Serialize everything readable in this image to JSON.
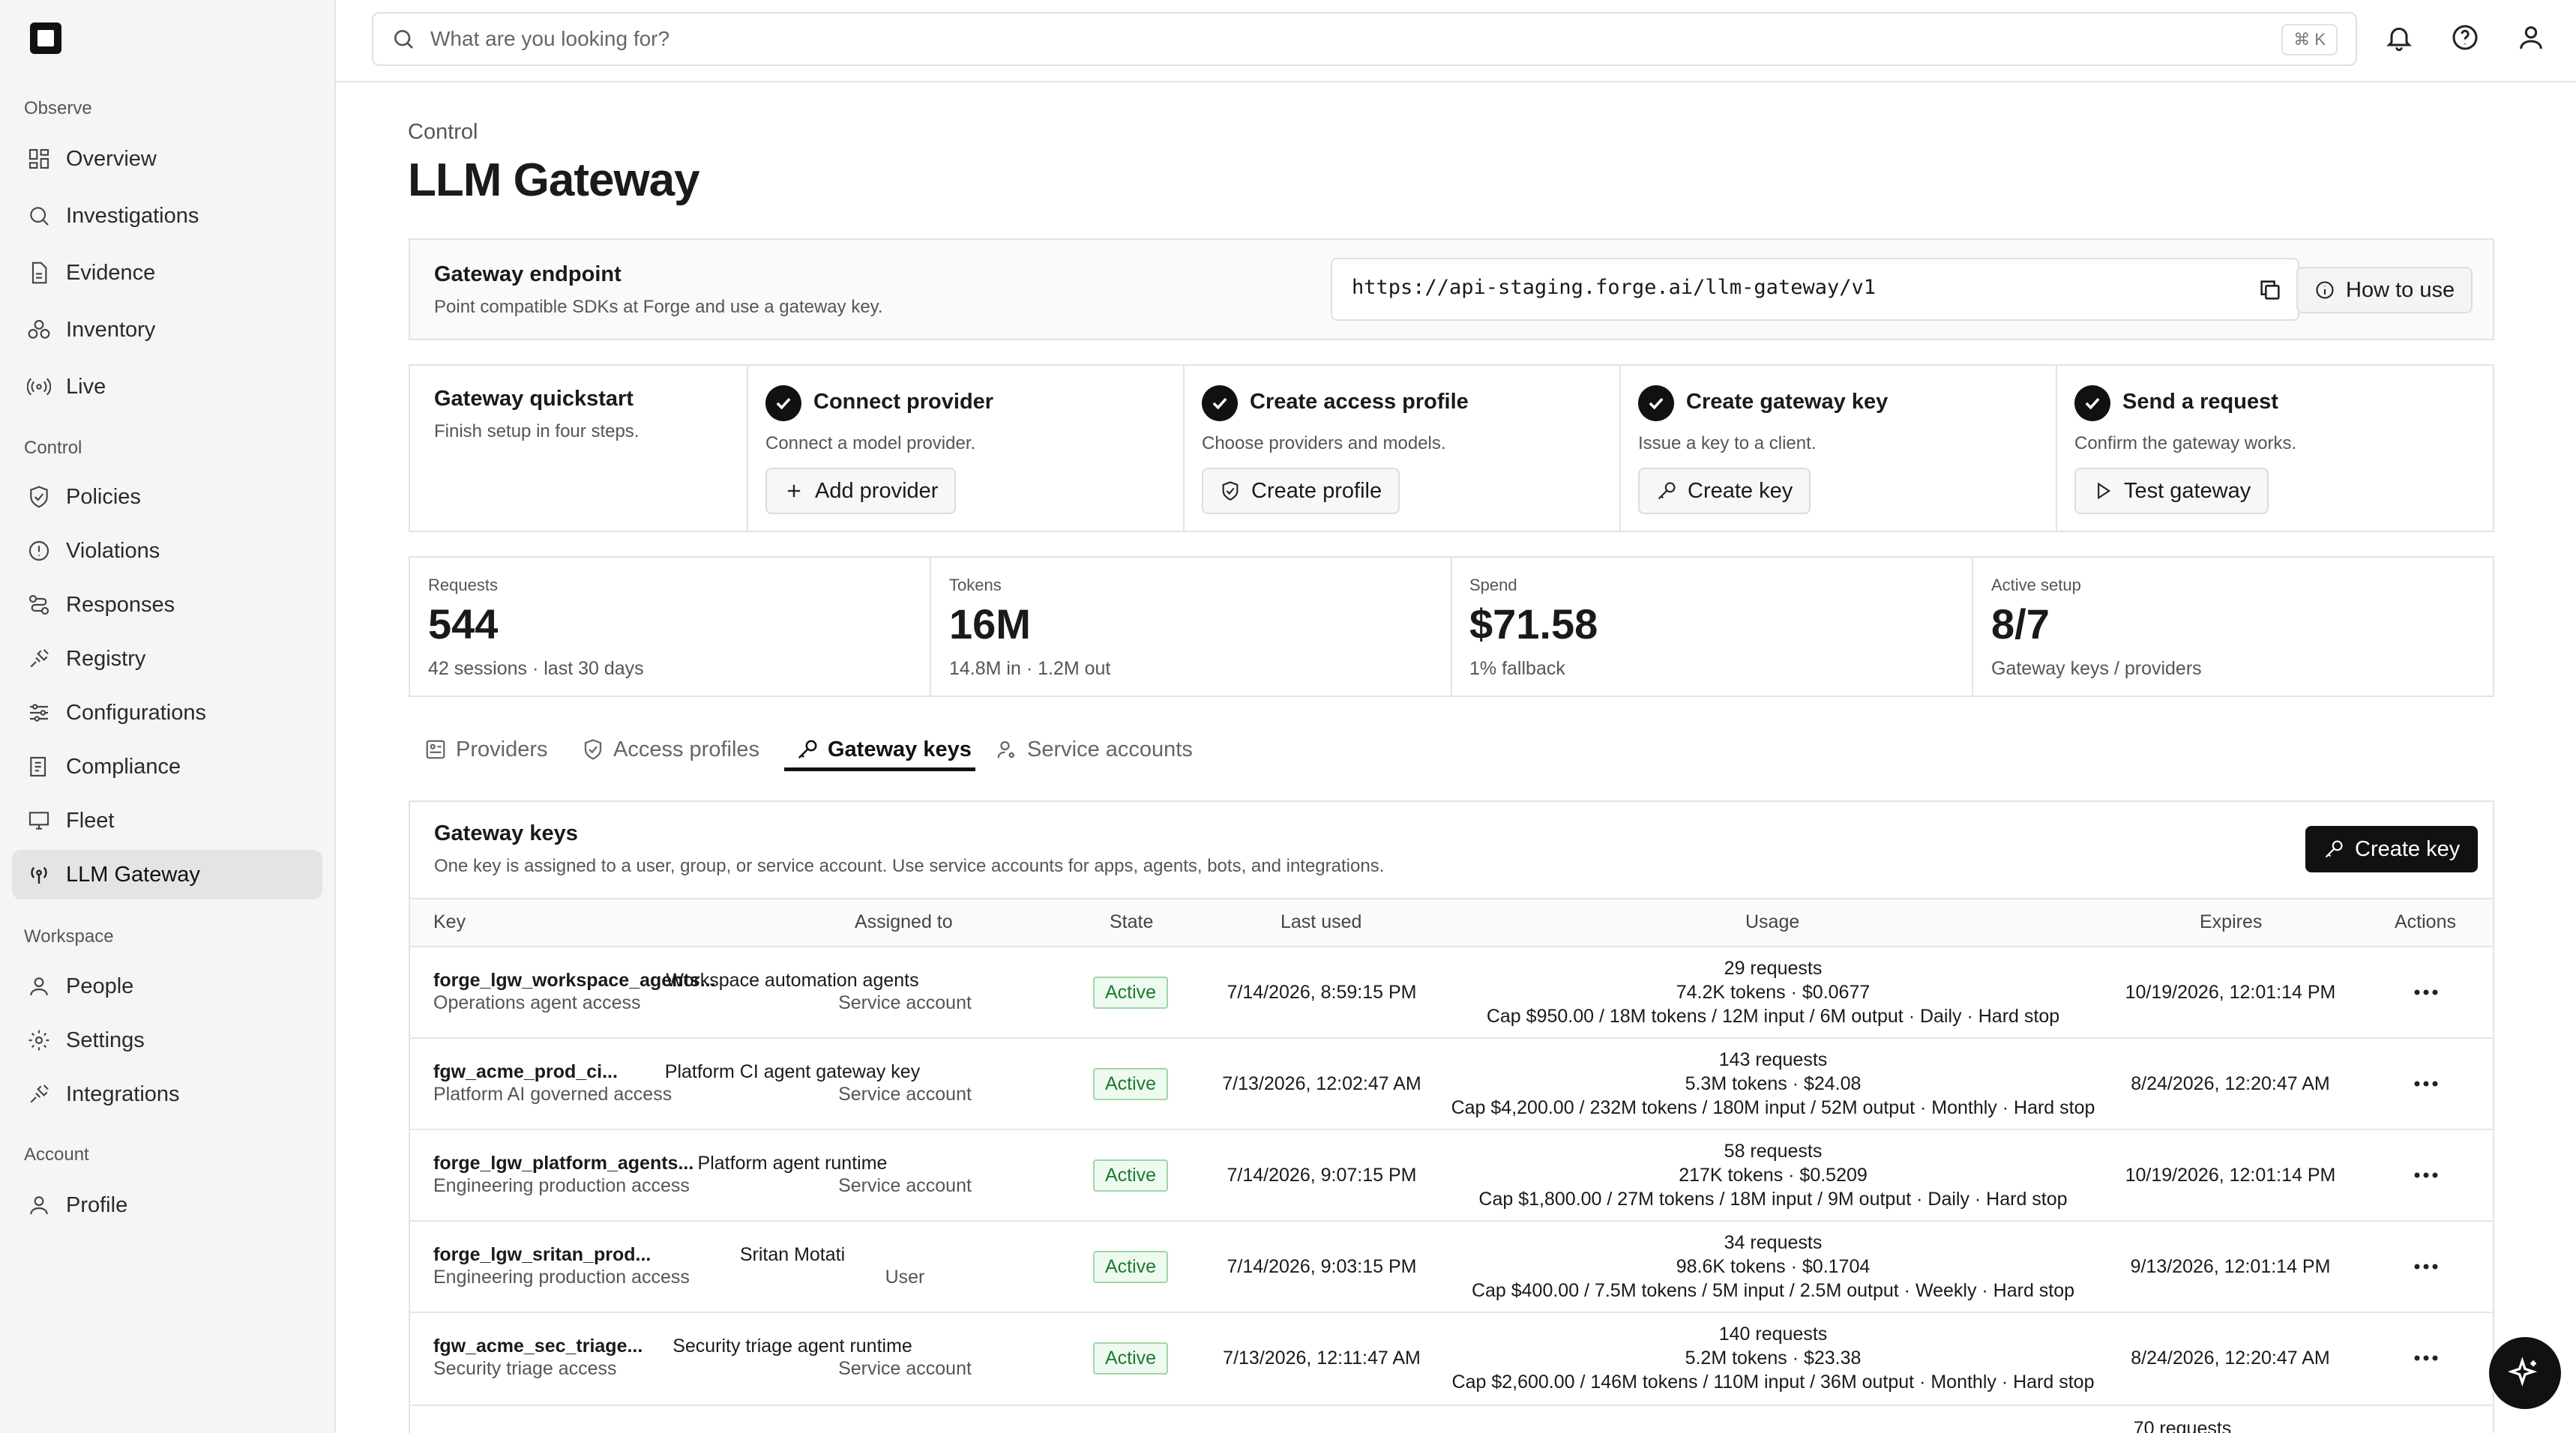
{
  "search": {
    "placeholder": "What are you looking for?",
    "shortcut": "⌘ K"
  },
  "sidebar": {
    "sections": [
      "Observe",
      "Control",
      "Workspace",
      "Account"
    ],
    "items": [
      "Overview",
      "Investigations",
      "Evidence",
      "Inventory",
      "Live",
      "Policies",
      "Violations",
      "Responses",
      "Registry",
      "Configurations",
      "Compliance",
      "Fleet",
      "LLM Gateway",
      "People",
      "Settings",
      "Integrations",
      "Profile"
    ]
  },
  "page": {
    "breadcrumb": "Control",
    "title": "LLM Gateway"
  },
  "endpoint": {
    "title": "Gateway endpoint",
    "subtitle": "Point compatible SDKs at Forge and use a gateway key.",
    "url": "https://api-staging.forge.ai/llm-gateway/v1",
    "how_to": "How to use"
  },
  "quickstart": {
    "title": "Gateway quickstart",
    "subtitle": "Finish setup in four steps.",
    "steps": [
      {
        "title": "Connect provider",
        "desc": "Connect a model provider.",
        "button": "Add provider"
      },
      {
        "title": "Create access profile",
        "desc": "Choose providers and models.",
        "button": "Create profile"
      },
      {
        "title": "Create gateway key",
        "desc": "Issue a key to a client.",
        "button": "Create key"
      },
      {
        "title": "Send a request",
        "desc": "Confirm the gateway works.",
        "button": "Test gateway"
      }
    ]
  },
  "kpis": [
    {
      "label": "Requests",
      "value": "544",
      "sub": "42 sessions · last 30 days"
    },
    {
      "label": "Tokens",
      "value": "16M",
      "sub": "14.8M in · 1.2M out"
    },
    {
      "label": "Spend",
      "value": "$71.58",
      "sub": "1% fallback"
    },
    {
      "label": "Active setup",
      "value": "8/7",
      "sub": "Gateway keys / providers"
    }
  ],
  "tabs": [
    "Providers",
    "Access profiles",
    "Gateway keys",
    "Service accounts"
  ],
  "keys": {
    "title": "Gateway keys",
    "subtitle": "One key is assigned to a user, group, or service account. Use service accounts for apps, agents, bots, and integrations.",
    "create_button": "Create key",
    "columns": [
      "Key",
      "Assigned to",
      "State",
      "Last used",
      "Usage",
      "Expires",
      "Actions"
    ],
    "rows": [
      {
        "key": "forge_lgw_workspace_agents...",
        "profile": "Operations agent access",
        "assignee": "Workspace automation agents",
        "type": "Service account",
        "state": "Active",
        "last_used": "7/14/2026, 8:59:15 PM",
        "requests": "29 requests",
        "tokens": "74.2K tokens · $0.0677",
        "cap": "Cap $950.00 / 18M tokens / 12M input / 6M output · Daily · Hard stop",
        "expires": "10/19/2026, 12:01:14 PM"
      },
      {
        "key": "fgw_acme_prod_ci...",
        "profile": "Platform AI governed access",
        "assignee": "Platform CI agent gateway key",
        "type": "Service account",
        "state": "Active",
        "last_used": "7/13/2026, 12:02:47 AM",
        "requests": "143 requests",
        "tokens": "5.3M tokens · $24.08",
        "cap": "Cap $4,200.00 / 232M tokens / 180M input / 52M output · Monthly · Hard stop",
        "expires": "8/24/2026, 12:20:47 AM"
      },
      {
        "key": "forge_lgw_platform_agents...",
        "profile": "Engineering production access",
        "assignee": "Platform agent runtime",
        "type": "Service account",
        "state": "Active",
        "last_used": "7/14/2026, 9:07:15 PM",
        "requests": "58 requests",
        "tokens": "217K tokens · $0.5209",
        "cap": "Cap $1,800.00 / 27M tokens / 18M input / 9M output · Daily · Hard stop",
        "expires": "10/19/2026, 12:01:14 PM"
      },
      {
        "key": "forge_lgw_sritan_prod...",
        "profile": "Engineering production access",
        "assignee": "Sritan Motati",
        "type": "User",
        "state": "Active",
        "last_used": "7/14/2026, 9:03:15 PM",
        "requests": "34 requests",
        "tokens": "98.6K tokens · $0.1704",
        "cap": "Cap $400.00 / 7.5M tokens / 5M input / 2.5M output · Weekly · Hard stop",
        "expires": "9/13/2026, 12:01:14 PM"
      },
      {
        "key": "fgw_acme_sec_triage...",
        "profile": "Security triage access",
        "assignee": "Security triage agent runtime",
        "type": "Service account",
        "state": "Active",
        "last_used": "7/13/2026, 12:11:47 AM",
        "requests": "140 requests",
        "tokens": "5.2M tokens · $23.38",
        "cap": "Cap $2,600.00 / 146M tokens / 110M input / 36M output · Monthly · Hard stop",
        "expires": "8/24/2026, 12:20:47 AM"
      }
    ],
    "partial_row": {
      "requests": "70 requests"
    }
  }
}
